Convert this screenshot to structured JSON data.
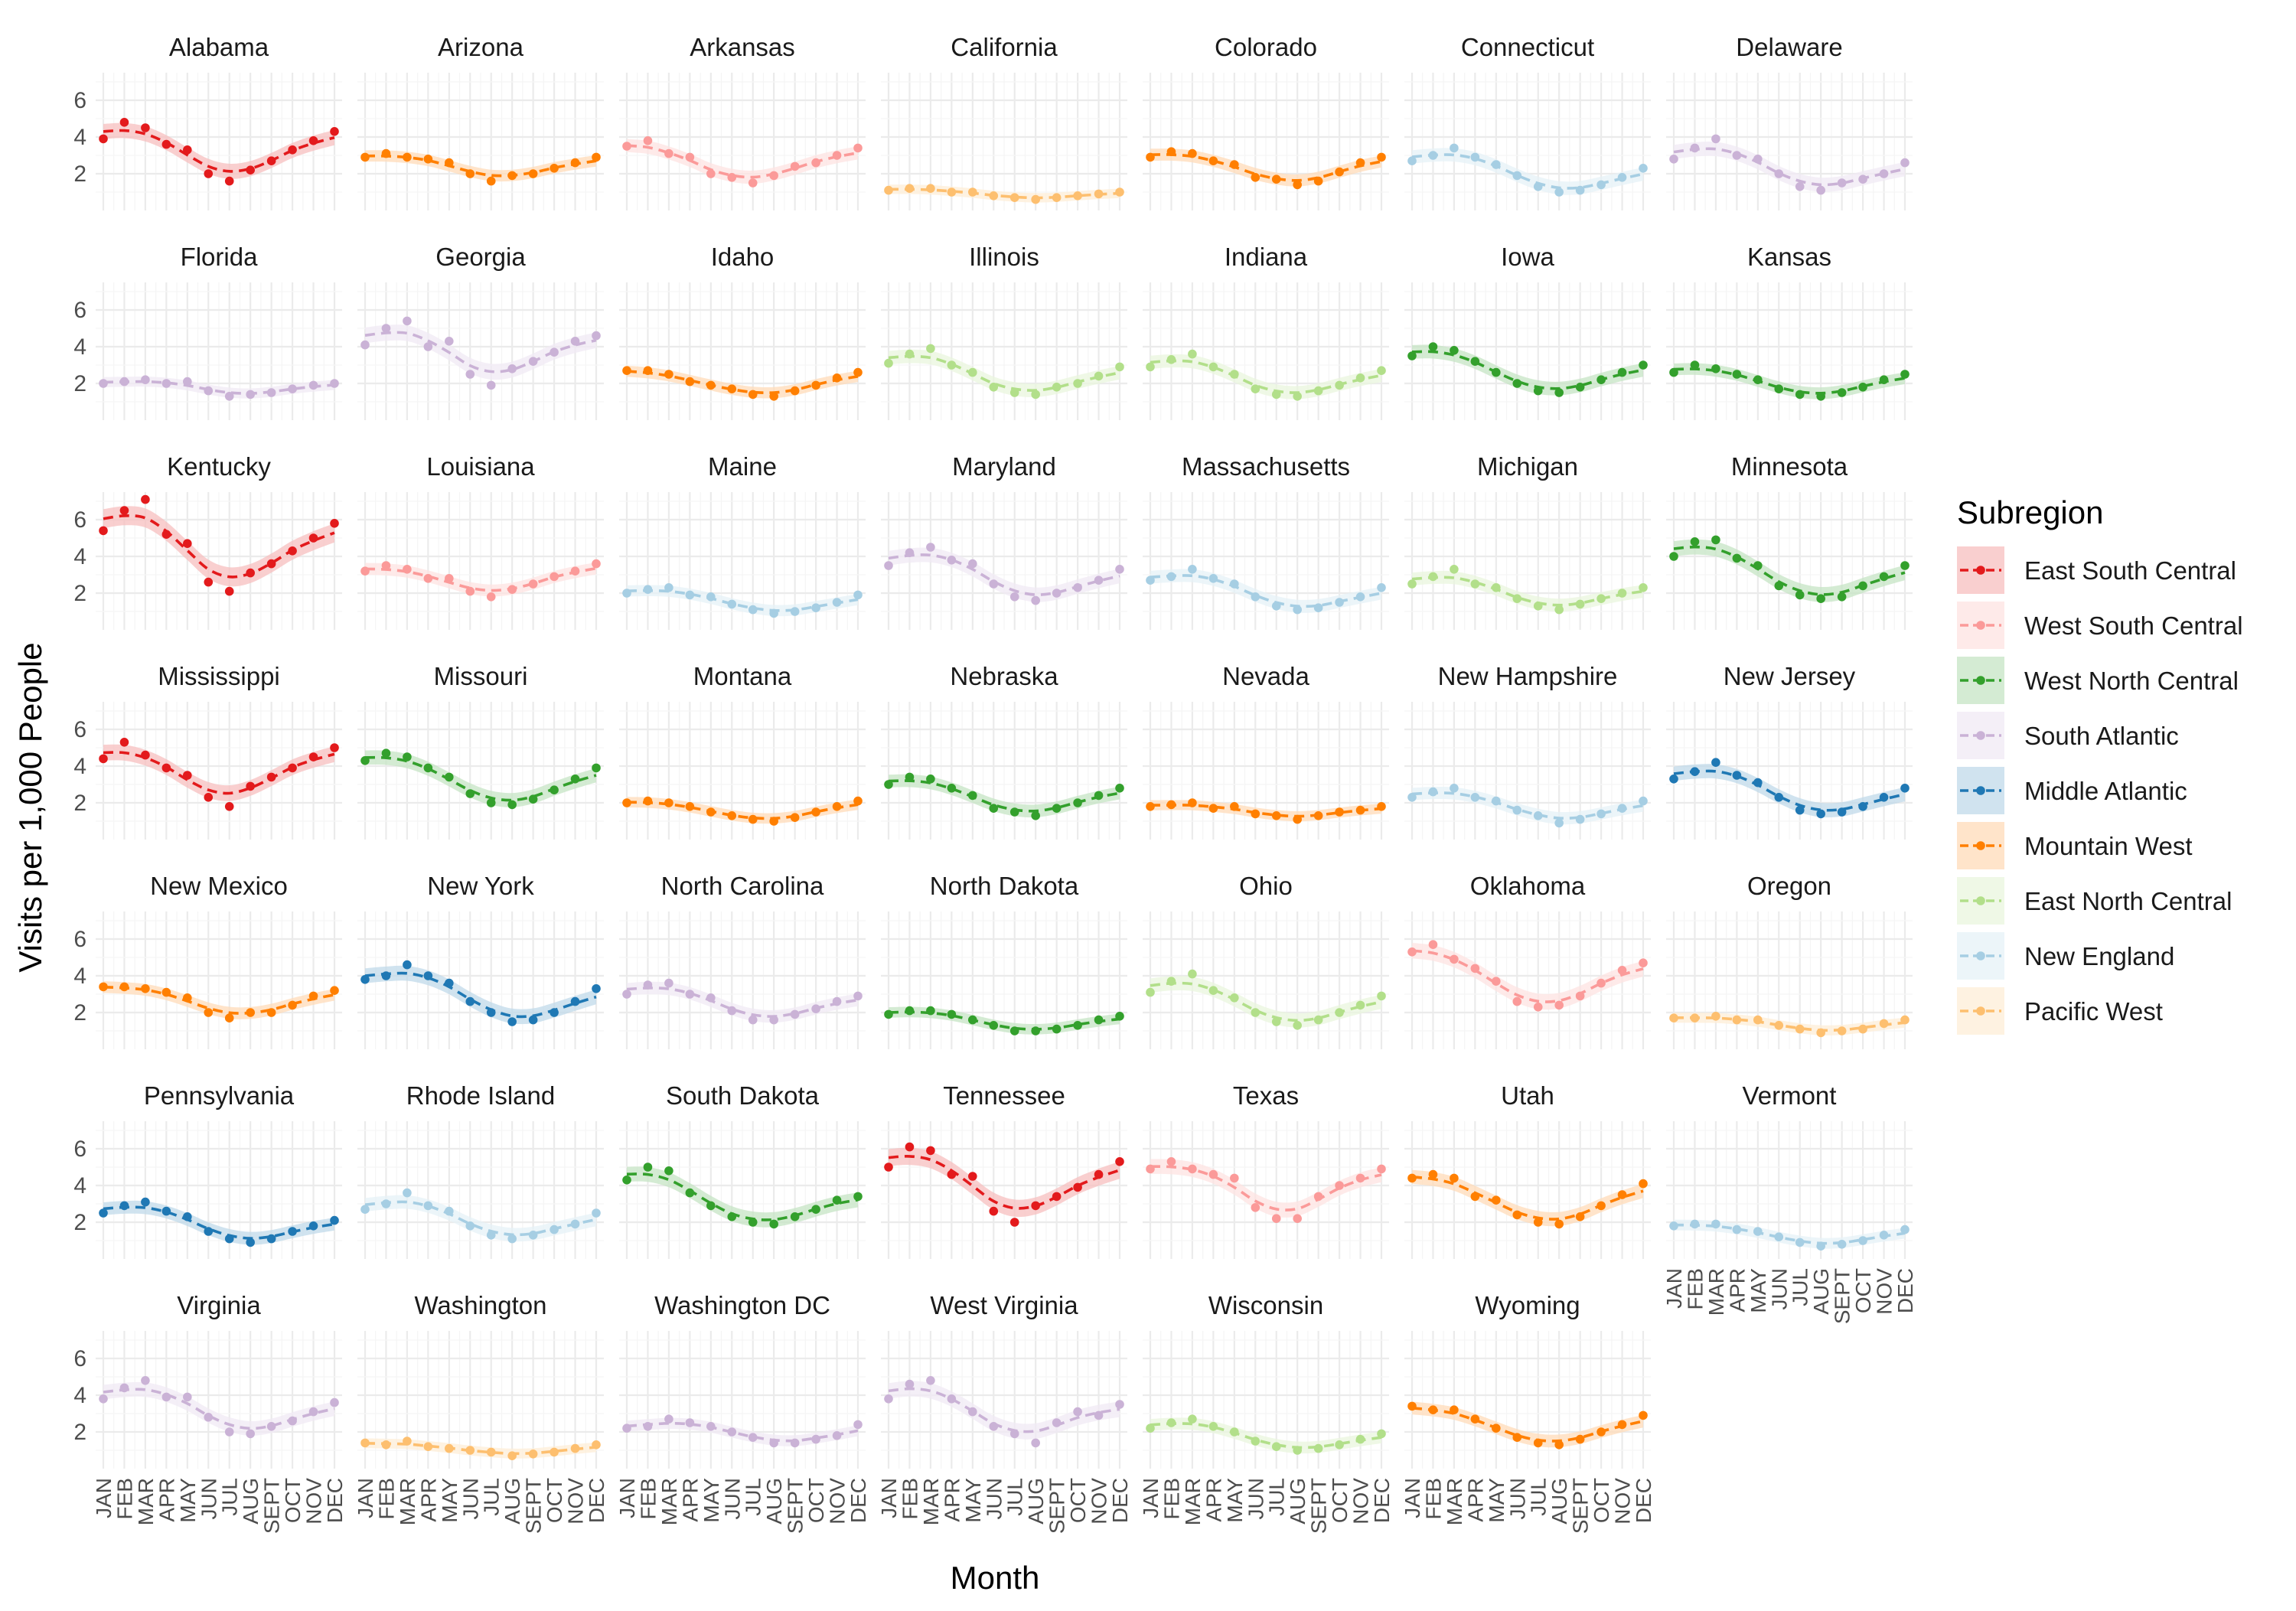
{
  "chart_data": {
    "type": "line",
    "layout": "facet-grid",
    "xlabel": "Month",
    "ylabel": "Visits per 1,000 People",
    "months": [
      "JAN",
      "FEB",
      "MAR",
      "APR",
      "MAY",
      "JUN",
      "JUL",
      "AUG",
      "SEPT",
      "OCT",
      "NOV",
      "DEC"
    ],
    "y_ticks": [
      2,
      4,
      6
    ],
    "ylim": [
      0,
      7.5
    ],
    "grid": true,
    "legend": {
      "title": "Subregion",
      "position": "right",
      "entries": [
        {
          "name": "East South Central",
          "color": "#e31a1c"
        },
        {
          "name": "West South Central",
          "color": "#fb9a99"
        },
        {
          "name": "West North Central",
          "color": "#33a02c"
        },
        {
          "name": "South Atlantic",
          "color": "#cab2d6"
        },
        {
          "name": "Middle Atlantic",
          "color": "#1f78b4"
        },
        {
          "name": "Mountain West",
          "color": "#ff7f00"
        },
        {
          "name": "East North Central",
          "color": "#b2df8a"
        },
        {
          "name": "New England",
          "color": "#a6cee3"
        },
        {
          "name": "Pacific West",
          "color": "#fdbf6f"
        }
      ]
    },
    "panels": [
      {
        "state": "Alabama",
        "subregion": "East South Central",
        "values": [
          3.9,
          4.8,
          4.5,
          3.6,
          3.3,
          2.0,
          1.6,
          2.2,
          2.7,
          3.3,
          3.8,
          4.3
        ]
      },
      {
        "state": "Arizona",
        "subregion": "Mountain West",
        "values": [
          2.9,
          3.1,
          2.9,
          2.8,
          2.6,
          2.0,
          1.6,
          1.9,
          2.0,
          2.3,
          2.6,
          2.9
        ]
      },
      {
        "state": "Arkansas",
        "subregion": "West South Central",
        "values": [
          3.5,
          3.8,
          3.1,
          2.9,
          2.0,
          1.8,
          1.5,
          1.9,
          2.4,
          2.6,
          3.0,
          3.4
        ]
      },
      {
        "state": "California",
        "subregion": "Pacific West",
        "values": [
          1.1,
          1.2,
          1.2,
          1.0,
          1.0,
          0.8,
          0.7,
          0.6,
          0.7,
          0.8,
          0.9,
          1.0
        ]
      },
      {
        "state": "Colorado",
        "subregion": "Mountain West",
        "values": [
          2.9,
          3.2,
          3.1,
          2.7,
          2.5,
          1.8,
          1.7,
          1.4,
          1.6,
          2.1,
          2.6,
          2.9
        ]
      },
      {
        "state": "Connecticut",
        "subregion": "New England",
        "values": [
          2.7,
          3.0,
          3.4,
          2.9,
          2.5,
          1.9,
          1.3,
          1.0,
          1.1,
          1.4,
          1.8,
          2.3
        ]
      },
      {
        "state": "Delaware",
        "subregion": "South Atlantic",
        "values": [
          2.8,
          3.4,
          3.9,
          3.0,
          2.8,
          2.0,
          1.3,
          1.1,
          1.5,
          1.7,
          2.0,
          2.6
        ]
      },
      {
        "state": "Florida",
        "subregion": "South Atlantic",
        "values": [
          2.0,
          2.1,
          2.2,
          2.0,
          2.1,
          1.6,
          1.3,
          1.4,
          1.5,
          1.7,
          1.9,
          2.0
        ]
      },
      {
        "state": "Georgia",
        "subregion": "South Atlantic",
        "values": [
          4.1,
          5.0,
          5.4,
          4.0,
          4.3,
          2.5,
          1.9,
          2.8,
          3.2,
          3.7,
          4.3,
          4.6
        ]
      },
      {
        "state": "Idaho",
        "subregion": "Mountain West",
        "values": [
          2.7,
          2.7,
          2.5,
          2.1,
          1.9,
          1.7,
          1.4,
          1.3,
          1.6,
          1.9,
          2.3,
          2.6
        ]
      },
      {
        "state": "Illinois",
        "subregion": "East North Central",
        "values": [
          3.1,
          3.6,
          3.9,
          3.0,
          2.6,
          1.8,
          1.5,
          1.4,
          1.8,
          2.0,
          2.4,
          2.9
        ]
      },
      {
        "state": "Indiana",
        "subregion": "East North Central",
        "values": [
          2.9,
          3.3,
          3.6,
          2.9,
          2.5,
          1.7,
          1.4,
          1.3,
          1.6,
          1.9,
          2.3,
          2.7
        ]
      },
      {
        "state": "Iowa",
        "subregion": "West North Central",
        "values": [
          3.5,
          4.0,
          3.8,
          3.2,
          2.6,
          2.0,
          1.6,
          1.5,
          1.8,
          2.2,
          2.6,
          3.0
        ]
      },
      {
        "state": "Kansas",
        "subregion": "West North Central",
        "values": [
          2.6,
          3.0,
          2.8,
          2.5,
          2.2,
          1.7,
          1.4,
          1.3,
          1.5,
          1.8,
          2.2,
          2.5
        ]
      },
      {
        "state": "Kentucky",
        "subregion": "East South Central",
        "values": [
          5.4,
          6.5,
          7.1,
          5.2,
          4.7,
          2.6,
          2.1,
          3.1,
          3.6,
          4.3,
          5.0,
          5.8
        ]
      },
      {
        "state": "Louisiana",
        "subregion": "West South Central",
        "values": [
          3.2,
          3.5,
          3.3,
          2.8,
          2.8,
          2.1,
          1.8,
          2.2,
          2.5,
          2.9,
          3.2,
          3.6
        ]
      },
      {
        "state": "Maine",
        "subregion": "New England",
        "values": [
          2.0,
          2.2,
          2.3,
          1.9,
          1.8,
          1.4,
          1.1,
          0.9,
          1.0,
          1.2,
          1.5,
          1.9
        ]
      },
      {
        "state": "Maryland",
        "subregion": "South Atlantic",
        "values": [
          3.5,
          4.2,
          4.5,
          3.8,
          3.6,
          2.5,
          1.8,
          1.6,
          2.0,
          2.3,
          2.7,
          3.3
        ]
      },
      {
        "state": "Massachusetts",
        "subregion": "New England",
        "values": [
          2.7,
          2.9,
          3.3,
          2.8,
          2.5,
          1.8,
          1.3,
          1.1,
          1.2,
          1.5,
          1.8,
          2.3
        ]
      },
      {
        "state": "Michigan",
        "subregion": "East North Central",
        "values": [
          2.5,
          2.9,
          3.3,
          2.5,
          2.3,
          1.7,
          1.3,
          1.1,
          1.4,
          1.7,
          2.0,
          2.3
        ]
      },
      {
        "state": "Minnesota",
        "subregion": "West North Central",
        "values": [
          4.0,
          4.8,
          4.9,
          3.9,
          3.5,
          2.4,
          1.9,
          1.7,
          1.8,
          2.4,
          2.9,
          3.5
        ]
      },
      {
        "state": "Mississippi",
        "subregion": "East South Central",
        "values": [
          4.4,
          5.3,
          4.6,
          3.9,
          3.5,
          2.3,
          1.8,
          2.9,
          3.4,
          3.9,
          4.5,
          5.0
        ]
      },
      {
        "state": "Missouri",
        "subregion": "West North Central",
        "values": [
          4.3,
          4.7,
          4.5,
          3.9,
          3.4,
          2.5,
          2.0,
          1.9,
          2.2,
          2.7,
          3.3,
          3.9
        ]
      },
      {
        "state": "Montana",
        "subregion": "Mountain West",
        "values": [
          2.0,
          2.1,
          2.0,
          1.8,
          1.5,
          1.3,
          1.1,
          1.0,
          1.2,
          1.5,
          1.8,
          2.1
        ]
      },
      {
        "state": "Nebraska",
        "subregion": "West North Central",
        "values": [
          3.0,
          3.4,
          3.3,
          2.8,
          2.4,
          1.7,
          1.5,
          1.3,
          1.7,
          2.0,
          2.4,
          2.8
        ]
      },
      {
        "state": "Nevada",
        "subregion": "Mountain West",
        "values": [
          1.8,
          1.9,
          2.0,
          1.7,
          1.8,
          1.4,
          1.3,
          1.1,
          1.3,
          1.5,
          1.6,
          1.8
        ]
      },
      {
        "state": "New Hampshire",
        "subregion": "New England",
        "values": [
          2.3,
          2.6,
          2.8,
          2.3,
          2.1,
          1.6,
          1.3,
          0.9,
          1.1,
          1.4,
          1.7,
          2.1
        ]
      },
      {
        "state": "New Jersey",
        "subregion": "Middle Atlantic",
        "values": [
          3.3,
          3.7,
          4.2,
          3.5,
          3.1,
          2.3,
          1.6,
          1.4,
          1.5,
          1.8,
          2.3,
          2.8
        ]
      },
      {
        "state": "New Mexico",
        "subregion": "Mountain West",
        "values": [
          3.4,
          3.4,
          3.3,
          3.1,
          2.8,
          2.0,
          1.7,
          2.0,
          2.0,
          2.4,
          2.9,
          3.2
        ]
      },
      {
        "state": "New York",
        "subregion": "Middle Atlantic",
        "values": [
          3.8,
          4.0,
          4.6,
          4.0,
          3.6,
          2.6,
          2.0,
          1.5,
          1.6,
          2.0,
          2.6,
          3.3
        ]
      },
      {
        "state": "North Carolina",
        "subregion": "South Atlantic",
        "values": [
          3.0,
          3.5,
          3.6,
          3.0,
          2.8,
          2.1,
          1.6,
          1.6,
          1.9,
          2.2,
          2.6,
          2.9
        ]
      },
      {
        "state": "North Dakota",
        "subregion": "West North Central",
        "values": [
          1.9,
          2.1,
          2.1,
          1.9,
          1.6,
          1.3,
          1.0,
          1.0,
          1.1,
          1.3,
          1.6,
          1.8
        ]
      },
      {
        "state": "Ohio",
        "subregion": "East North Central",
        "values": [
          3.1,
          3.7,
          4.1,
          3.2,
          2.8,
          2.0,
          1.5,
          1.3,
          1.6,
          2.0,
          2.4,
          2.9
        ]
      },
      {
        "state": "Oklahoma",
        "subregion": "West South Central",
        "values": [
          5.3,
          5.7,
          4.9,
          4.4,
          3.7,
          2.6,
          2.3,
          2.4,
          2.9,
          3.6,
          4.3,
          4.7
        ]
      },
      {
        "state": "Oregon",
        "subregion": "Pacific West",
        "values": [
          1.7,
          1.7,
          1.8,
          1.6,
          1.6,
          1.3,
          1.1,
          0.9,
          1.0,
          1.1,
          1.4,
          1.6
        ]
      },
      {
        "state": "Pennsylvania",
        "subregion": "Middle Atlantic",
        "values": [
          2.5,
          2.9,
          3.1,
          2.6,
          2.3,
          1.5,
          1.1,
          0.9,
          1.1,
          1.5,
          1.8,
          2.1
        ]
      },
      {
        "state": "Rhode Island",
        "subregion": "New England",
        "values": [
          2.7,
          3.0,
          3.6,
          2.9,
          2.6,
          1.8,
          1.3,
          1.1,
          1.3,
          1.6,
          1.9,
          2.5
        ]
      },
      {
        "state": "South Dakota",
        "subregion": "West North Central",
        "values": [
          4.3,
          5.0,
          4.8,
          3.6,
          2.9,
          2.3,
          2.0,
          1.9,
          2.3,
          2.7,
          3.2,
          3.4
        ]
      },
      {
        "state": "Tennessee",
        "subregion": "East South Central",
        "values": [
          5.0,
          6.1,
          5.9,
          4.6,
          4.5,
          2.6,
          2.0,
          2.9,
          3.4,
          3.9,
          4.6,
          5.3
        ]
      },
      {
        "state": "Texas",
        "subregion": "West South Central",
        "values": [
          4.9,
          5.3,
          4.9,
          4.6,
          4.4,
          2.8,
          2.2,
          2.2,
          3.4,
          4.0,
          4.4,
          4.9
        ]
      },
      {
        "state": "Utah",
        "subregion": "Mountain West",
        "values": [
          4.4,
          4.6,
          4.4,
          3.4,
          3.2,
          2.4,
          2.0,
          1.9,
          2.3,
          2.9,
          3.5,
          4.1
        ]
      },
      {
        "state": "Vermont",
        "subregion": "New England",
        "values": [
          1.8,
          1.9,
          1.9,
          1.6,
          1.5,
          1.2,
          0.9,
          0.7,
          0.8,
          1.0,
          1.3,
          1.6
        ]
      },
      {
        "state": "Virginia",
        "subregion": "South Atlantic",
        "values": [
          3.8,
          4.4,
          4.8,
          3.9,
          3.9,
          2.8,
          2.0,
          1.9,
          2.3,
          2.6,
          3.1,
          3.6
        ]
      },
      {
        "state": "Washington",
        "subregion": "Pacific West",
        "values": [
          1.4,
          1.3,
          1.5,
          1.2,
          1.1,
          1.0,
          0.9,
          0.7,
          0.8,
          0.9,
          1.1,
          1.3
        ]
      },
      {
        "state": "Washington DC",
        "subregion": "South Atlantic",
        "values": [
          2.2,
          2.3,
          2.7,
          2.5,
          2.3,
          2.0,
          1.7,
          1.4,
          1.4,
          1.6,
          1.8,
          2.4
        ]
      },
      {
        "state": "West Virginia",
        "subregion": "South Atlantic",
        "values": [
          3.8,
          4.6,
          4.8,
          3.8,
          3.1,
          2.3,
          1.9,
          1.4,
          2.5,
          3.1,
          2.9,
          3.5
        ]
      },
      {
        "state": "Wisconsin",
        "subregion": "East North Central",
        "values": [
          2.2,
          2.5,
          2.7,
          2.3,
          2.0,
          1.5,
          1.2,
          1.0,
          1.1,
          1.3,
          1.6,
          1.9
        ]
      },
      {
        "state": "Wyoming",
        "subregion": "Mountain West",
        "values": [
          3.4,
          3.2,
          3.2,
          2.7,
          2.2,
          1.7,
          1.4,
          1.3,
          1.6,
          2.0,
          2.4,
          2.9
        ]
      }
    ]
  }
}
